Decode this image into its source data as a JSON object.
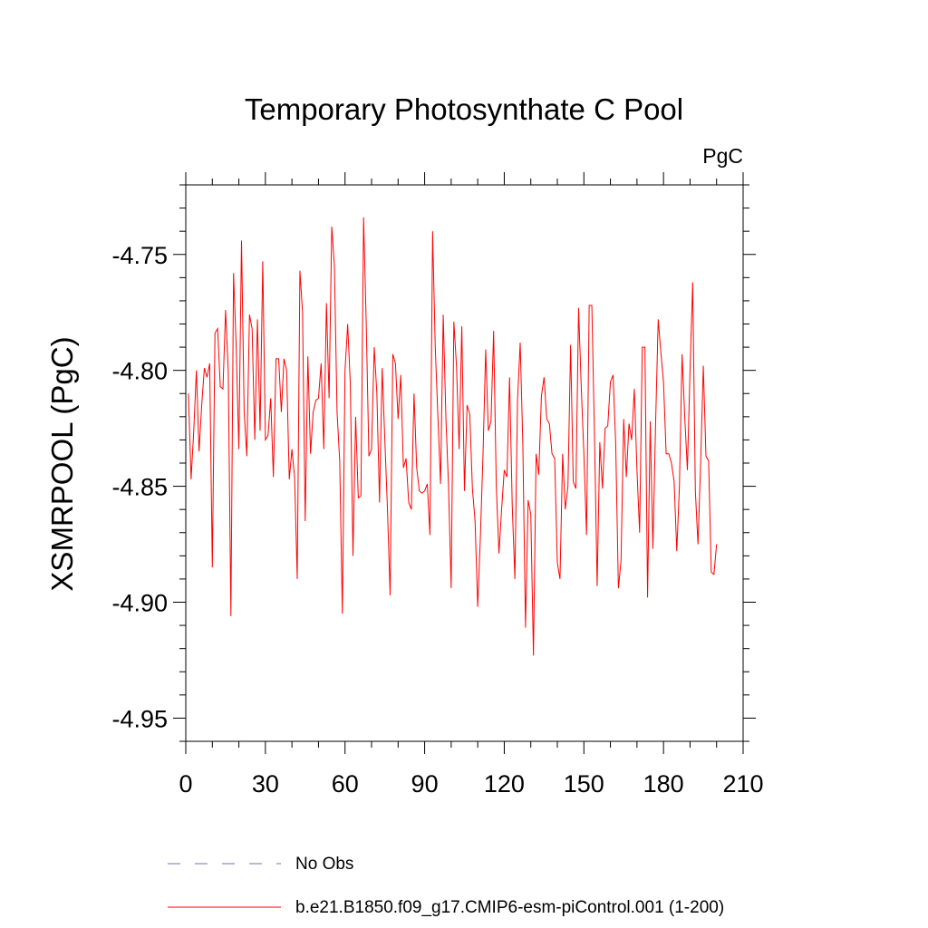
{
  "chart_data": {
    "type": "line",
    "title": "Temporary Photosynthate C Pool",
    "units_label": "PgC",
    "xlabel": "",
    "ylabel": "XSMRPOOL  (PgC)",
    "xlim": [
      0,
      210
    ],
    "ylim": [
      -4.96,
      -4.72
    ],
    "xticks": [
      0,
      30,
      60,
      90,
      120,
      150,
      180,
      210
    ],
    "xtick_labels": [
      "0",
      "30",
      "60",
      "90",
      "120",
      "150",
      "180",
      "210"
    ],
    "yticks": [
      -4.95,
      -4.9,
      -4.85,
      -4.8,
      -4.75
    ],
    "ytick_labels": [
      "-4.95",
      "-4.90",
      "-4.85",
      "-4.80",
      "-4.75"
    ],
    "grid": false,
    "legend_position": "bottom",
    "colors": {
      "series": "#ff0000",
      "no_obs": "#7a6fb3",
      "axis": "#000000"
    },
    "legend": [
      {
        "label": "No Obs",
        "style": "dashed",
        "color": "#7a6fb3"
      },
      {
        "label": "b.e21.B1850.f09_g17.CMIP6-esm-piControl.001 (1-200)",
        "style": "solid",
        "color": "#ff0000"
      }
    ],
    "series": [
      {
        "name": "b.e21.B1850.f09_g17.CMIP6-esm-piControl.001 (1-200)",
        "x": [
          1,
          2,
          3,
          4,
          5,
          6,
          7,
          8,
          9,
          10,
          11,
          12,
          13,
          14,
          15,
          16,
          17,
          18,
          19,
          20,
          21,
          22,
          23,
          24,
          25,
          26,
          27,
          28,
          29,
          30,
          31,
          32,
          33,
          34,
          35,
          36,
          37,
          38,
          39,
          40,
          41,
          42,
          43,
          44,
          45,
          46,
          47,
          48,
          49,
          50,
          51,
          52,
          53,
          54,
          55,
          56,
          57,
          58,
          59,
          60,
          61,
          62,
          63,
          64,
          65,
          66,
          67,
          68,
          69,
          70,
          71,
          72,
          73,
          74,
          75,
          76,
          77,
          78,
          79,
          80,
          81,
          82,
          83,
          84,
          85,
          86,
          87,
          88,
          89,
          90,
          91,
          92,
          93,
          94,
          95,
          96,
          97,
          98,
          99,
          100,
          101,
          102,
          103,
          104,
          105,
          106,
          107,
          108,
          109,
          110,
          111,
          112,
          113,
          114,
          115,
          116,
          117,
          118,
          119,
          120,
          121,
          122,
          123,
          124,
          125,
          126,
          127,
          128,
          129,
          130,
          131,
          132,
          133,
          134,
          135,
          136,
          137,
          138,
          139,
          140,
          141,
          142,
          143,
          144,
          145,
          146,
          147,
          148,
          149,
          150,
          151,
          152,
          153,
          154,
          155,
          156,
          157,
          158,
          159,
          160,
          161,
          162,
          163,
          164,
          165,
          166,
          167,
          168,
          169,
          170,
          171,
          172,
          173,
          174,
          175,
          176,
          177,
          178,
          179,
          180,
          181,
          182,
          183,
          184,
          185,
          186,
          187,
          188,
          189,
          190,
          191,
          192,
          193,
          194,
          195,
          196,
          197,
          198,
          199,
          200
        ],
        "y": [
          -4.81,
          -4.847,
          -4.826,
          -4.8,
          -4.835,
          -4.815,
          -4.799,
          -4.803,
          -4.797,
          -4.885,
          -4.784,
          -4.782,
          -4.807,
          -4.808,
          -4.774,
          -4.8,
          -4.906,
          -4.758,
          -4.79,
          -4.834,
          -4.744,
          -4.818,
          -4.837,
          -4.776,
          -4.782,
          -4.83,
          -4.778,
          -4.826,
          -4.753,
          -4.83,
          -4.828,
          -4.812,
          -4.846,
          -4.795,
          -4.795,
          -4.818,
          -4.795,
          -4.8,
          -4.847,
          -4.834,
          -4.846,
          -4.89,
          -4.757,
          -4.775,
          -4.865,
          -4.794,
          -4.836,
          -4.818,
          -4.813,
          -4.812,
          -4.797,
          -4.834,
          -4.771,
          -4.812,
          -4.738,
          -4.755,
          -4.818,
          -4.839,
          -4.905,
          -4.8,
          -4.78,
          -4.806,
          -4.88,
          -4.82,
          -4.855,
          -4.854,
          -4.734,
          -4.78,
          -4.837,
          -4.834,
          -4.79,
          -4.81,
          -4.857,
          -4.799,
          -4.83,
          -4.86,
          -4.897,
          -4.793,
          -4.797,
          -4.821,
          -4.802,
          -4.842,
          -4.838,
          -4.857,
          -4.86,
          -4.81,
          -4.842,
          -4.852,
          -4.853,
          -4.852,
          -4.849,
          -4.871,
          -4.74,
          -4.79,
          -4.82,
          -4.849,
          -4.776,
          -4.82,
          -4.85,
          -4.894,
          -4.779,
          -4.798,
          -4.834,
          -4.781,
          -4.852,
          -4.815,
          -4.819,
          -4.851,
          -4.865,
          -4.902,
          -4.872,
          -4.836,
          -4.791,
          -4.826,
          -4.822,
          -4.783,
          -4.85,
          -4.879,
          -4.86,
          -4.843,
          -4.846,
          -4.803,
          -4.858,
          -4.89,
          -4.813,
          -4.788,
          -4.832,
          -4.911,
          -4.856,
          -4.862,
          -4.923,
          -4.836,
          -4.845,
          -4.811,
          -4.803,
          -4.821,
          -4.823,
          -4.836,
          -4.838,
          -4.883,
          -4.89,
          -4.836,
          -4.86,
          -4.85,
          -4.789,
          -4.848,
          -4.851,
          -4.773,
          -4.807,
          -4.836,
          -4.871,
          -4.772,
          -4.772,
          -4.828,
          -4.893,
          -4.831,
          -4.851,
          -4.825,
          -4.824,
          -4.805,
          -4.802,
          -4.832,
          -4.894,
          -4.882,
          -4.821,
          -4.846,
          -4.823,
          -4.83,
          -4.808,
          -4.843,
          -4.87,
          -4.79,
          -4.79,
          -4.898,
          -4.822,
          -4.877,
          -4.824,
          -4.778,
          -4.792,
          -4.805,
          -4.836,
          -4.836,
          -4.84,
          -4.848,
          -4.878,
          -4.85,
          -4.793,
          -4.82,
          -4.843,
          -4.8,
          -4.762,
          -4.852,
          -4.875,
          -4.84,
          -4.798,
          -4.837,
          -4.839,
          -4.887,
          -4.888,
          -4.875
        ]
      }
    ]
  }
}
